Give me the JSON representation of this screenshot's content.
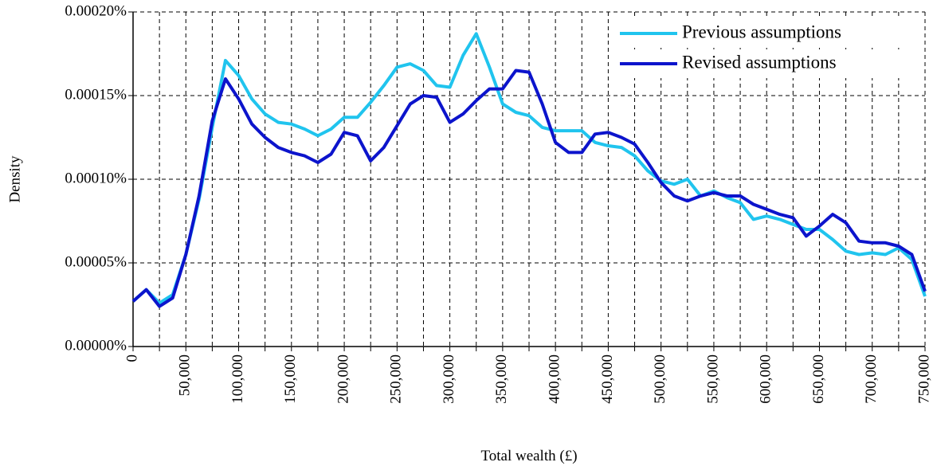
{
  "chart_data": {
    "type": "line",
    "xlabel": "Total wealth (£)",
    "ylabel": "Density",
    "x": [
      0,
      12500,
      25000,
      37500,
      50000,
      62500,
      75000,
      87500,
      100000,
      112500,
      125000,
      137500,
      150000,
      162500,
      175000,
      187500,
      200000,
      212500,
      225000,
      237500,
      250000,
      262500,
      275000,
      287500,
      300000,
      312500,
      325000,
      337500,
      350000,
      362500,
      375000,
      387500,
      400000,
      412500,
      425000,
      437500,
      450000,
      462500,
      475000,
      487500,
      500000,
      512500,
      525000,
      537500,
      550000,
      562500,
      575000,
      587500,
      600000,
      612500,
      625000,
      637500,
      650000,
      662500,
      675000,
      687500,
      700000,
      712500,
      725000,
      737500,
      750000
    ],
    "series": [
      {
        "name": "Previous assumptions",
        "color": "#20c4ee",
        "values": [
          2.7e-05,
          3.4e-05,
          2.6e-05,
          3.1e-05,
          5.5e-05,
          8.8e-05,
          0.000131,
          0.000171,
          0.000162,
          0.000148,
          0.000139,
          0.000134,
          0.000133,
          0.00013,
          0.000126,
          0.00013,
          0.000137,
          0.000137,
          0.000146,
          0.000156,
          0.000167,
          0.000169,
          0.000165,
          0.000156,
          0.000155,
          0.000174,
          0.000187,
          0.000167,
          0.000145,
          0.00014,
          0.000138,
          0.000131,
          0.000129,
          0.000129,
          0.000129,
          0.000122,
          0.00012,
          0.000119,
          0.000114,
          0.000105,
          9.9e-05,
          9.7e-05,
          0.0001,
          9e-05,
          9.3e-05,
          8.9e-05,
          8.6e-05,
          7.6e-05,
          7.8e-05,
          7.6e-05,
          7.3e-05,
          7e-05,
          7e-05,
          6.4e-05,
          5.7e-05,
          5.5e-05,
          5.6e-05,
          5.5e-05,
          5.9e-05,
          5.2e-05,
          3e-05
        ]
      },
      {
        "name": "Revised assumptions",
        "color": "#0c14cc",
        "values": [
          2.7e-05,
          3.4e-05,
          2.4e-05,
          2.9e-05,
          5.5e-05,
          9e-05,
          0.000135,
          0.00016,
          0.000148,
          0.000133,
          0.000125,
          0.000119,
          0.000116,
          0.000114,
          0.00011,
          0.000115,
          0.000128,
          0.000126,
          0.000111,
          0.000119,
          0.000132,
          0.000145,
          0.00015,
          0.000149,
          0.000134,
          0.000139,
          0.000147,
          0.000154,
          0.000154,
          0.000165,
          0.000164,
          0.000145,
          0.000122,
          0.000116,
          0.000116,
          0.000127,
          0.000128,
          0.000125,
          0.000121,
          0.00011,
          9.8e-05,
          9e-05,
          8.7e-05,
          9e-05,
          9.2e-05,
          9e-05,
          9e-05,
          8.5e-05,
          8.2e-05,
          7.9e-05,
          7.7e-05,
          6.6e-05,
          7.2e-05,
          7.9e-05,
          7.4e-05,
          6.3e-05,
          6.2e-05,
          6.2e-05,
          6e-05,
          5.5e-05,
          3.3e-05
        ]
      }
    ],
    "xlim": [
      0,
      750000
    ],
    "xticks": [
      0,
      {
        "value": 50000,
        "label": "50,000"
      },
      {
        "value": 100000,
        "label": "100,000"
      },
      {
        "value": 150000,
        "label": "150,000"
      },
      {
        "value": 200000,
        "label": "200,000"
      },
      {
        "value": 250000,
        "label": "250,000"
      },
      {
        "value": 300000,
        "label": "300,000"
      },
      {
        "value": 350000,
        "label": "350,000"
      },
      {
        "value": 400000,
        "label": "400,000"
      },
      {
        "value": 450000,
        "label": "450,000"
      },
      {
        "value": 500000,
        "label": "500,000"
      },
      {
        "value": 550000,
        "label": "550,000"
      },
      {
        "value": 600000,
        "label": "600,000"
      },
      {
        "value": 650000,
        "label": "650,000"
      },
      {
        "value": 700000,
        "label": "700,000"
      },
      {
        "value": 750000,
        "label": "750,000"
      }
    ],
    "xminor_ticks": [
      25000,
      75000,
      125000,
      175000,
      225000,
      275000,
      325000,
      375000,
      425000,
      475000,
      525000,
      575000,
      625000,
      675000,
      725000
    ],
    "ylim": [
      0,
      0.0002
    ],
    "yticks": [
      {
        "value": 0,
        "label": "0.00000%"
      },
      {
        "value": 5e-05,
        "label": "0.00005%"
      },
      {
        "value": 0.0001,
        "label": "0.00010%"
      },
      {
        "value": 0.00015,
        "label": "0.00015%"
      },
      {
        "value": 0.0002,
        "label": "0.00020%"
      }
    ],
    "grid": true,
    "legend": "upper right"
  }
}
